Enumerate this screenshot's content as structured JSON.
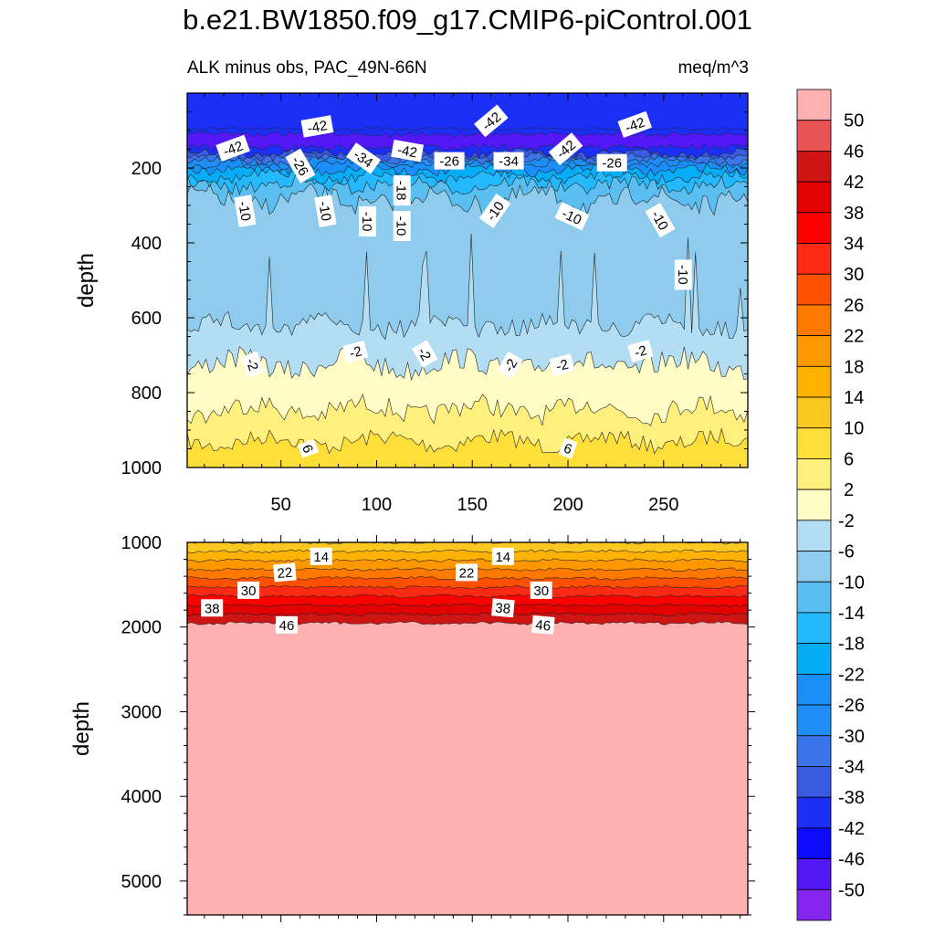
{
  "title": "b.e21.BW1850.f09_g17.CMIP6-piControl.001",
  "subtitle_left": "ALK minus obs, PAC_49N-66N",
  "subtitle_right": "meq/m^3",
  "chart_data": [
    {
      "type": "contour",
      "panel": "upper",
      "ylabel": "depth",
      "xlim": [
        1,
        294
      ],
      "ylim": [
        0,
        1000
      ],
      "y_inverted": true,
      "xticks": [
        50,
        100,
        150,
        200,
        250
      ],
      "yticks": [
        200,
        400,
        600,
        800,
        1000
      ],
      "contour_labels": [
        {
          "text": "-42",
          "x": 25,
          "y": 148
        },
        {
          "text": "-42",
          "x": 69,
          "y": 90
        },
        {
          "text": "-26",
          "x": 60,
          "y": 195
        },
        {
          "text": "-34",
          "x": 93,
          "y": 175
        },
        {
          "text": "-42",
          "x": 116,
          "y": 155
        },
        {
          "text": "-18",
          "x": 113,
          "y": 260
        },
        {
          "text": "-26",
          "x": 138,
          "y": 182
        },
        {
          "text": "-42",
          "x": 160,
          "y": 75
        },
        {
          "text": "-34",
          "x": 169,
          "y": 182
        },
        {
          "text": "-42",
          "x": 199,
          "y": 150
        },
        {
          "text": "-26",
          "x": 223,
          "y": 187
        },
        {
          "text": "-42",
          "x": 235,
          "y": 85
        },
        {
          "text": "-10",
          "x": 31,
          "y": 315
        },
        {
          "text": "-10",
          "x": 73,
          "y": 315
        },
        {
          "text": "-10",
          "x": 95,
          "y": 343
        },
        {
          "text": "-10",
          "x": 113,
          "y": 355
        },
        {
          "text": "-10",
          "x": 162,
          "y": 315
        },
        {
          "text": "-10",
          "x": 202,
          "y": 330
        },
        {
          "text": "-10",
          "x": 248,
          "y": 340
        },
        {
          "text": "-10",
          "x": 260,
          "y": 485
        },
        {
          "text": "-2",
          "x": 35,
          "y": 725
        },
        {
          "text": "-2",
          "x": 89,
          "y": 692
        },
        {
          "text": "-2",
          "x": 125,
          "y": 697
        },
        {
          "text": "-2",
          "x": 170,
          "y": 727
        },
        {
          "text": "-2",
          "x": 197,
          "y": 727
        },
        {
          "text": "-2",
          "x": 238,
          "y": 690
        },
        {
          "text": "6",
          "x": 64,
          "y": 950
        },
        {
          "text": "6",
          "x": 200,
          "y": 950
        }
      ]
    },
    {
      "type": "contour",
      "panel": "lower",
      "ylabel": "depth",
      "xlim": [
        1,
        294
      ],
      "ylim": [
        1000,
        5400
      ],
      "y_inverted": true,
      "yticks": [
        1000,
        2000,
        3000,
        4000,
        5000
      ],
      "contour_labels": [
        {
          "text": "14",
          "x": 71,
          "y": 1170
        },
        {
          "text": "14",
          "x": 166,
          "y": 1170
        },
        {
          "text": "22",
          "x": 52,
          "y": 1360
        },
        {
          "text": "22",
          "x": 147,
          "y": 1360
        },
        {
          "text": "30",
          "x": 33,
          "y": 1570
        },
        {
          "text": "30",
          "x": 186,
          "y": 1570
        },
        {
          "text": "38",
          "x": 14,
          "y": 1780
        },
        {
          "text": "38",
          "x": 166,
          "y": 1780
        },
        {
          "text": "46",
          "x": 53,
          "y": 1980
        },
        {
          "text": "46",
          "x": 187,
          "y": 1980
        }
      ]
    }
  ],
  "colorbar": {
    "labels": [
      "50",
      "46",
      "42",
      "38",
      "34",
      "30",
      "26",
      "22",
      "18",
      "14",
      "10",
      "6",
      "2",
      "-2",
      "-6",
      "-10",
      "-14",
      "-18",
      "-22",
      "-26",
      "-30",
      "-34",
      "-38",
      "-42",
      "-46",
      "-50"
    ],
    "colors": [
      "#ffb0b0",
      "#e85454",
      "#cf1414",
      "#e30202",
      "#ff0000",
      "#ff2a14",
      "#ff5000",
      "#ff7800",
      "#ff9800",
      "#ffb300",
      "#fbc721",
      "#fedf3a",
      "#fff07d",
      "#fffcc5",
      "#b3ddf3",
      "#8ecbec",
      "#5bbef1",
      "#24b9fd",
      "#05adf6",
      "#1a8ff9",
      "#1e8df6",
      "#3a74ea",
      "#395be2",
      "#1c2ff6",
      "#0d0aff",
      "#5318f5",
      "#8525ed"
    ]
  }
}
